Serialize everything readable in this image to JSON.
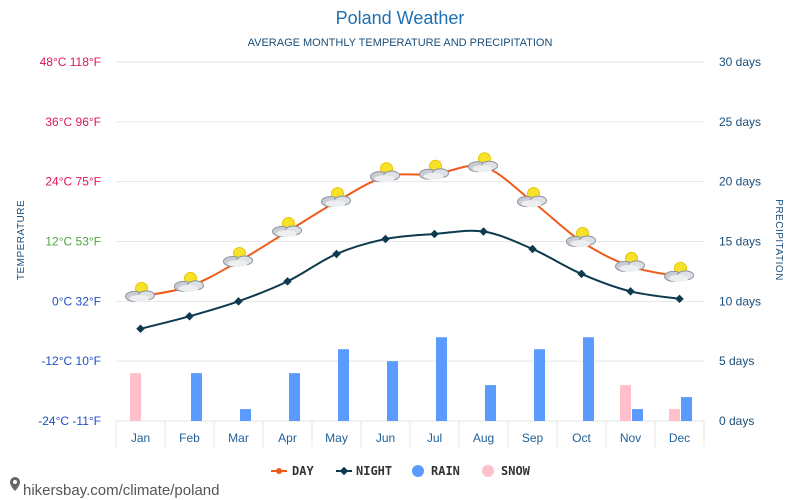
{
  "colors": {
    "day": "#f05a1a",
    "night": "#0d3a4f",
    "rain": "#5b9bff",
    "snow": "#ffc0cb",
    "title": "#1f6fb2",
    "grid": "#e6e6e6"
  },
  "chart_data": {
    "type": "line",
    "title": "Poland Weather",
    "subtitle": "AVERAGE MONTHLY TEMPERATURE AND PRECIPITATION",
    "ylabel": "TEMPERATURE",
    "y2label": "PRECIPITATION",
    "categories": [
      "Jan",
      "Feb",
      "Mar",
      "Apr",
      "May",
      "Jun",
      "Jul",
      "Aug",
      "Sep",
      "Oct",
      "Nov",
      "Dec"
    ],
    "ylim": [
      -24,
      48
    ],
    "y2lim": [
      0,
      30
    ],
    "temp_ticks": [
      {
        "value": 48,
        "label": "48°C 118°F",
        "color": "#e0155e"
      },
      {
        "value": 36,
        "label": "36°C 96°F",
        "color": "#e0155e"
      },
      {
        "value": 24,
        "label": "24°C 75°F",
        "color": "#e0155e"
      },
      {
        "value": 12,
        "label": "12°C 53°F",
        "color": "#4aa83a"
      },
      {
        "value": 0,
        "label": "0°C 32°F",
        "color": "#1e4fc8"
      },
      {
        "value": -12,
        "label": "-12°C 10°F",
        "color": "#1e4fc8"
      },
      {
        "value": -24,
        "label": "-24°C -11°F",
        "color": "#1e4fc8"
      }
    ],
    "precip_ticks": [
      {
        "value": 30,
        "label": "30 days"
      },
      {
        "value": 25,
        "label": "25 days"
      },
      {
        "value": 20,
        "label": "20 days"
      },
      {
        "value": 15,
        "label": "15 days"
      },
      {
        "value": 10,
        "label": "10 days"
      },
      {
        "value": 5,
        "label": "5 days"
      },
      {
        "value": 0,
        "label": "0 days"
      }
    ],
    "series": [
      {
        "name": "DAY",
        "values": [
          1,
          3,
          8,
          14,
          20,
          25,
          25.5,
          27,
          20,
          12,
          7,
          5
        ]
      },
      {
        "name": "NIGHT",
        "values": [
          -5.5,
          -3,
          0,
          4,
          9.5,
          12.5,
          13.5,
          14,
          10.5,
          5.5,
          2,
          0.5
        ]
      },
      {
        "name": "RAIN",
        "values": [
          0,
          4,
          1,
          4,
          6,
          5,
          7,
          3,
          6,
          7,
          1,
          2
        ]
      },
      {
        "name": "SNOW",
        "values": [
          4,
          0,
          0,
          0,
          0,
          0,
          0,
          0,
          0,
          0,
          3,
          1
        ]
      }
    ]
  },
  "legend": {
    "day": "DAY",
    "night": "NIGHT",
    "rain": "RAIN",
    "snow": "SNOW"
  },
  "footer": {
    "text": "hikersbay.com/climate/poland"
  }
}
